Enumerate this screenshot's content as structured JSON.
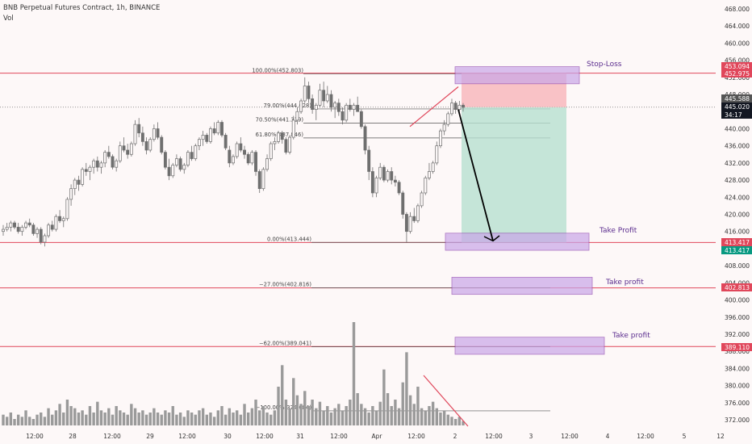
{
  "header": {
    "symbol_line": "BNB Perpetual Futures Contract, 1h, BINANCE",
    "volume_label": "Vol"
  },
  "colors": {
    "background": "#fdf8f8",
    "candle": "#6f6f6f",
    "volume": "#9a9a9a",
    "red_line": "#e0475b",
    "fib_line": "#555555",
    "zone": "#c9a6e8",
    "zone_border": "#8e44ad",
    "stop_zone": "#f8b4b9",
    "profit_zone": "#b7e0cf",
    "trend": "#e0475b",
    "arrow": "#000000",
    "annotation": "#5b2d8e"
  },
  "chart_data": {
    "type": "candlestick",
    "title": "BNB Perpetual Futures Contract, 1h, BINANCE",
    "y_axis": {
      "ticks": [
        "468.000",
        "464.000",
        "460.000",
        "456.000",
        "452.000",
        "448.000",
        "444.000",
        "440.000",
        "436.000",
        "432.000",
        "428.000",
        "424.000",
        "420.000",
        "416.000",
        "412.000",
        "408.000",
        "404.000",
        "400.000",
        "396.000",
        "392.000",
        "388.000",
        "384.000",
        "380.000",
        "376.000",
        "372.000"
      ],
      "range": [
        370,
        470
      ]
    },
    "x_axis": {
      "ticks": [
        "12:00",
        "28",
        "12:00",
        "29",
        "12:00",
        "30",
        "12:00",
        "31",
        "12:00",
        "Apr",
        "12:00",
        "2",
        "12:00",
        "3",
        "12:00",
        "4",
        "12:00",
        "5",
        "12"
      ]
    },
    "price_labels": [
      {
        "value": "453.094",
        "color": "#e0475b"
      },
      {
        "value": "452.975",
        "color": "#e0475b"
      },
      {
        "value": "445.588",
        "color": "#555555"
      },
      {
        "value": "445.020",
        "color": "#131722"
      },
      {
        "value": "34:17",
        "color": "#131722"
      },
      {
        "value": "413.417",
        "color": "#e0475b"
      },
      {
        "value": "413.417",
        "color": "#089981"
      },
      {
        "value": "402.813",
        "color": "#e0475b"
      },
      {
        "value": "389.110",
        "color": "#e0475b"
      }
    ],
    "fib_levels": [
      {
        "label": "100.00%(452.803)",
        "price": 452.803
      },
      {
        "label": "79.00%(444.628)",
        "price": 444.628
      },
      {
        "label": "70.50%(441.319)",
        "price": 441.319
      },
      {
        "label": "61.80%(437.846)",
        "price": 437.846
      },
      {
        "label": "0.00%(413.444)",
        "price": 413.444
      },
      {
        "label": "−27.00%(402.816)",
        "price": 402.816
      },
      {
        "label": "−62.00%(389.041)",
        "price": 389.041
      },
      {
        "label": "−100.00%(374.084)",
        "price": 374.084
      }
    ],
    "horizontal_lines": [
      452.975,
      413.417,
      402.813,
      389.11
    ],
    "annotations": [
      "Stop-Loss",
      "Take Profit",
      "Take profit",
      "Take profit"
    ],
    "ohlc": [
      [
        416.0,
        417.5,
        415.0,
        416.5
      ],
      [
        416.5,
        418.0,
        416.0,
        417.0
      ],
      [
        417.0,
        418.5,
        416.0,
        418.0
      ],
      [
        418.0,
        418.5,
        416.5,
        417.0
      ],
      [
        417.0,
        418.0,
        415.5,
        416.0
      ],
      [
        416.0,
        417.5,
        415.0,
        417.0
      ],
      [
        417.0,
        418.5,
        416.5,
        418.0
      ],
      [
        418.0,
        419.0,
        417.0,
        417.5
      ],
      [
        417.5,
        418.0,
        415.0,
        415.5
      ],
      [
        415.5,
        417.0,
        414.5,
        416.5
      ],
      [
        416.5,
        417.0,
        413.0,
        413.5
      ],
      [
        413.5,
        415.5,
        412.5,
        415.0
      ],
      [
        415.0,
        418.0,
        414.5,
        417.5
      ],
      [
        417.5,
        418.5,
        416.0,
        416.5
      ],
      [
        416.5,
        420.0,
        416.0,
        419.5
      ],
      [
        419.5,
        421.0,
        418.0,
        418.5
      ],
      [
        418.5,
        419.5,
        417.0,
        419.0
      ],
      [
        419.0,
        424.0,
        418.5,
        423.5
      ],
      [
        423.5,
        427.0,
        422.0,
        426.0
      ],
      [
        426.0,
        428.5,
        424.5,
        428.0
      ],
      [
        428.0,
        429.0,
        425.5,
        427.0
      ],
      [
        427.0,
        431.0,
        426.5,
        430.5
      ],
      [
        430.5,
        432.0,
        429.0,
        430.0
      ],
      [
        430.0,
        431.5,
        428.0,
        431.0
      ],
      [
        431.0,
        433.0,
        429.5,
        432.5
      ],
      [
        432.5,
        433.5,
        430.0,
        431.0
      ],
      [
        431.0,
        432.5,
        429.5,
        432.0
      ],
      [
        432.0,
        435.0,
        431.0,
        434.5
      ],
      [
        434.5,
        436.0,
        433.0,
        433.5
      ],
      [
        433.5,
        434.0,
        430.5,
        431.0
      ],
      [
        431.0,
        433.0,
        430.0,
        432.5
      ],
      [
        432.5,
        437.0,
        432.0,
        436.0
      ],
      [
        436.0,
        438.0,
        434.5,
        435.0
      ],
      [
        435.0,
        436.5,
        433.0,
        434.0
      ],
      [
        434.0,
        437.0,
        433.5,
        436.5
      ],
      [
        436.5,
        442.0,
        436.0,
        441.0
      ],
      [
        441.0,
        442.5,
        438.0,
        439.0
      ],
      [
        439.0,
        440.5,
        436.0,
        437.0
      ],
      [
        437.0,
        438.0,
        434.0,
        435.0
      ],
      [
        435.0,
        438.0,
        434.5,
        437.5
      ],
      [
        437.5,
        441.0,
        437.0,
        440.0
      ],
      [
        440.0,
        441.5,
        437.5,
        438.0
      ],
      [
        438.0,
        438.5,
        434.0,
        434.5
      ],
      [
        434.5,
        435.0,
        430.5,
        431.0
      ],
      [
        431.0,
        433.0,
        428.0,
        429.0
      ],
      [
        429.0,
        432.0,
        428.5,
        431.5
      ],
      [
        431.5,
        434.0,
        431.0,
        433.0
      ],
      [
        433.0,
        433.5,
        430.0,
        430.5
      ],
      [
        430.5,
        432.0,
        429.5,
        431.5
      ],
      [
        431.5,
        435.0,
        431.0,
        434.5
      ],
      [
        434.5,
        436.0,
        432.5,
        433.0
      ],
      [
        433.0,
        436.5,
        432.5,
        436.0
      ],
      [
        436.0,
        438.0,
        435.0,
        437.5
      ],
      [
        437.5,
        439.5,
        436.0,
        438.5
      ],
      [
        438.5,
        439.0,
        436.5,
        437.0
      ],
      [
        437.0,
        440.5,
        436.5,
        440.0
      ],
      [
        440.0,
        441.5,
        438.5,
        439.0
      ],
      [
        439.0,
        442.0,
        438.5,
        441.5
      ],
      [
        441.5,
        442.0,
        438.0,
        438.5
      ],
      [
        438.5,
        439.0,
        435.0,
        435.5
      ],
      [
        435.0,
        436.0,
        431.0,
        432.0
      ],
      [
        432.0,
        434.0,
        431.5,
        433.5
      ],
      [
        433.5,
        437.0,
        433.0,
        436.5
      ],
      [
        436.5,
        438.0,
        434.5,
        435.0
      ],
      [
        435.0,
        436.0,
        433.0,
        434.0
      ],
      [
        434.0,
        434.5,
        431.5,
        432.0
      ],
      [
        432.0,
        435.0,
        431.5,
        434.5
      ],
      [
        434.5,
        435.0,
        429.0,
        430.0
      ],
      [
        430.0,
        430.5,
        425.0,
        426.0
      ],
      [
        426.0,
        431.0,
        425.5,
        430.5
      ],
      [
        430.5,
        434.0,
        430.0,
        433.0
      ],
      [
        433.0,
        437.0,
        432.5,
        436.5
      ],
      [
        436.5,
        438.0,
        435.0,
        437.0
      ],
      [
        437.0,
        439.5,
        436.5,
        439.0
      ],
      [
        439.0,
        439.5,
        436.5,
        437.5
      ],
      [
        437.5,
        438.0,
        434.0,
        434.5
      ],
      [
        434.5,
        438.5,
        434.0,
        438.0
      ],
      [
        438.0,
        443.0,
        437.5,
        442.0
      ],
      [
        442.0,
        445.0,
        441.0,
        444.0
      ],
      [
        444.0,
        447.0,
        443.5,
        446.5
      ],
      [
        446.5,
        452.0,
        446.0,
        450.0
      ],
      [
        450.0,
        451.0,
        446.0,
        447.0
      ],
      [
        447.0,
        448.0,
        443.5,
        444.5
      ],
      [
        444.5,
        446.0,
        442.0,
        445.5
      ],
      [
        445.5,
        450.5,
        445.0,
        449.0
      ],
      [
        449.0,
        451.0,
        445.0,
        446.5
      ],
      [
        446.5,
        450.0,
        446.0,
        448.0
      ],
      [
        448.0,
        449.0,
        444.0,
        445.0
      ],
      [
        445.0,
        446.5,
        442.5,
        446.0
      ],
      [
        446.0,
        447.0,
        443.0,
        444.0
      ],
      [
        444.0,
        445.0,
        441.0,
        442.0
      ],
      [
        442.0,
        446.0,
        441.5,
        445.5
      ],
      [
        445.5,
        447.0,
        444.0,
        444.5
      ],
      [
        444.5,
        446.0,
        443.0,
        445.5
      ],
      [
        445.5,
        447.5,
        444.0,
        444.0
      ],
      [
        444.0,
        444.5,
        440.0,
        440.5
      ],
      [
        440.5,
        441.0,
        434.0,
        435.0
      ],
      [
        435.0,
        436.0,
        428.0,
        430.0
      ],
      [
        430.0,
        431.0,
        424.0,
        425.0
      ],
      [
        425.0,
        429.0,
        424.0,
        428.5
      ],
      [
        428.5,
        432.0,
        428.0,
        431.0
      ],
      [
        431.0,
        431.5,
        427.5,
        428.0
      ],
      [
        428.0,
        430.5,
        427.5,
        430.0
      ],
      [
        430.0,
        431.0,
        427.0,
        428.0
      ],
      [
        428.0,
        429.0,
        426.5,
        427.5
      ],
      [
        427.5,
        428.0,
        424.5,
        425.0
      ],
      [
        425.0,
        425.5,
        419.0,
        420.0
      ],
      [
        420.0,
        420.5,
        413.5,
        416.0
      ],
      [
        416.0,
        420.5,
        415.5,
        419.5
      ],
      [
        419.5,
        421.5,
        418.0,
        418.5
      ],
      [
        418.5,
        422.5,
        418.0,
        422.0
      ],
      [
        422.0,
        425.5,
        421.5,
        425.0
      ],
      [
        425.0,
        429.0,
        424.5,
        428.5
      ],
      [
        428.5,
        432.0,
        428.0,
        430.0
      ],
      [
        430.0,
        432.5,
        429.5,
        432.0
      ],
      [
        432.0,
        437.0,
        431.5,
        436.0
      ],
      [
        436.0,
        440.0,
        435.5,
        439.5
      ],
      [
        439.5,
        442.0,
        438.5,
        441.0
      ],
      [
        441.0,
        444.0,
        440.5,
        443.5
      ],
      [
        443.5,
        447.0,
        443.0,
        446.0
      ],
      [
        446.0,
        446.5,
        443.5,
        444.5
      ],
      [
        444.5,
        446.5,
        444.0,
        445.5
      ],
      [
        445.5,
        446.0,
        444.0,
        445.0
      ]
    ],
    "volumes": [
      5,
      4,
      6,
      3,
      5,
      4,
      7,
      4,
      3,
      5,
      6,
      4,
      8,
      5,
      7,
      10,
      6,
      12,
      9,
      8,
      6,
      7,
      5,
      9,
      6,
      11,
      7,
      6,
      8,
      5,
      9,
      7,
      6,
      5,
      10,
      8,
      6,
      7,
      5,
      6,
      8,
      6,
      5,
      7,
      6,
      9,
      5,
      6,
      4,
      7,
      6,
      5,
      7,
      8,
      5,
      6,
      4,
      7,
      9,
      5,
      8,
      6,
      7,
      5,
      10,
      6,
      8,
      12,
      7,
      9,
      6,
      5,
      7,
      18,
      28,
      12,
      8,
      22,
      14,
      10,
      16,
      9,
      12,
      8,
      11,
      7,
      9,
      6,
      8,
      10,
      7,
      9,
      12,
      48,
      15,
      10,
      8,
      6,
      9,
      7,
      11,
      26,
      15,
      9,
      12,
      8,
      20,
      34,
      14,
      10,
      18,
      8,
      7,
      9,
      11,
      8,
      6,
      7,
      5,
      4,
      3,
      4,
      2
    ]
  }
}
